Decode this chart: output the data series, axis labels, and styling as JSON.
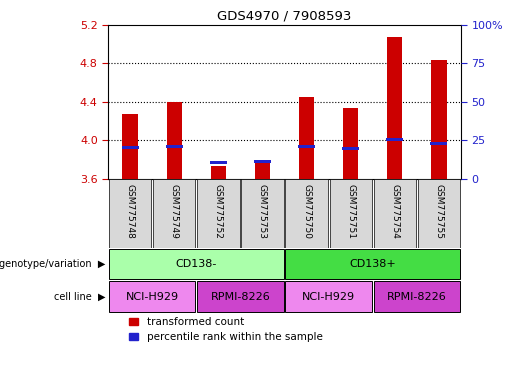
{
  "title": "GDS4970 / 7908593",
  "samples": [
    "GSM775748",
    "GSM775749",
    "GSM775752",
    "GSM775753",
    "GSM775750",
    "GSM775751",
    "GSM775754",
    "GSM775755"
  ],
  "bar_bottom": 3.6,
  "red_top": [
    4.27,
    4.4,
    3.73,
    3.78,
    4.45,
    4.34,
    5.07,
    4.83
  ],
  "blue_top": [
    3.925,
    3.935,
    3.765,
    3.775,
    3.935,
    3.91,
    4.01,
    3.965
  ],
  "ylim": [
    3.6,
    5.2
  ],
  "yticks": [
    3.6,
    4.0,
    4.4,
    4.8,
    5.2
  ],
  "right_yticks": [
    0,
    25,
    50,
    75,
    100
  ],
  "right_ylabels": [
    "0",
    "25",
    "50",
    "75",
    "100%"
  ],
  "bar_width": 0.35,
  "red_color": "#cc0000",
  "blue_color": "#2222cc",
  "left_axis_color": "#cc0000",
  "right_axis_color": "#2222cc",
  "genotype_color_left": "#aaffaa",
  "genotype_color_right": "#44dd44",
  "cell_line_color_light": "#ee88ee",
  "cell_line_color_dark": "#cc44cc",
  "legend_red_label": "transformed count",
  "legend_blue_label": "percentile rank within the sample",
  "background_color": "#ffffff"
}
